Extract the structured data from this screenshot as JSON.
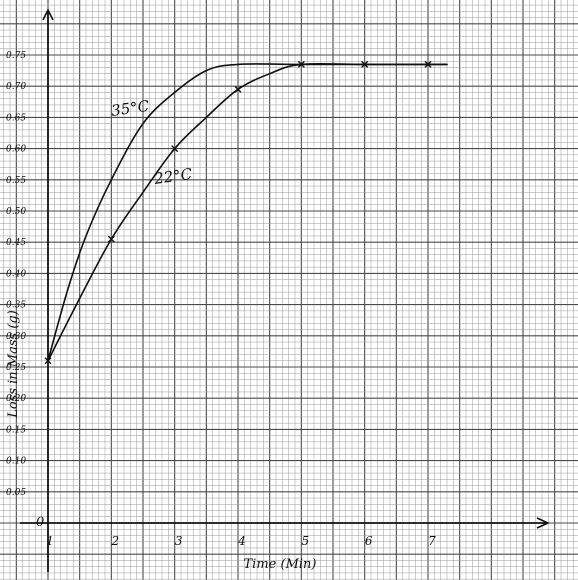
{
  "chart_data": {
    "type": "line",
    "xlabel": "Time (Min)",
    "ylabel": "Loss in Mass (g)",
    "xlim": [
      1,
      7.8
    ],
    "ylim": [
      0,
      0.78
    ],
    "x_ticks": [
      "1",
      "2",
      "3",
      "4",
      "5",
      "6",
      "7"
    ],
    "y_ticks": [
      "0",
      "0.05",
      "0.10",
      "0.15",
      "0.20",
      "0.25",
      "0.30",
      "0.35",
      "0.40",
      "0.45",
      "0.50",
      "0.55",
      "0.60",
      "0.65",
      "0.70",
      "0.75"
    ],
    "grid": true,
    "series": [
      {
        "name": "35°C",
        "curve": [
          [
            1,
            0.26
          ],
          [
            1.3,
            0.37
          ],
          [
            1.6,
            0.46
          ],
          [
            2,
            0.55
          ],
          [
            2.5,
            0.64
          ],
          [
            3,
            0.69
          ],
          [
            3.5,
            0.725
          ],
          [
            4,
            0.735
          ],
          [
            5,
            0.735
          ],
          [
            6,
            0.735
          ],
          [
            7.3,
            0.735
          ]
        ],
        "markers": []
      },
      {
        "name": "22°C",
        "curve": [
          [
            1,
            0.26
          ],
          [
            1.5,
            0.36
          ],
          [
            2,
            0.455
          ],
          [
            2.5,
            0.53
          ],
          [
            3,
            0.6
          ],
          [
            3.5,
            0.65
          ],
          [
            4,
            0.695
          ],
          [
            4.5,
            0.72
          ],
          [
            5,
            0.735
          ],
          [
            6,
            0.735
          ],
          [
            7,
            0.735
          ],
          [
            7.3,
            0.735
          ]
        ],
        "markers": [
          [
            1,
            0.26
          ],
          [
            2,
            0.455
          ],
          [
            3,
            0.6
          ],
          [
            4,
            0.695
          ],
          [
            5,
            0.735
          ],
          [
            6,
            0.735
          ],
          [
            7,
            0.735
          ]
        ]
      }
    ],
    "colors": {
      "paper": "#ffffff",
      "grid_fine": "#9a9a9a",
      "grid_major": "#4a4a4a",
      "ink": "#111111"
    }
  }
}
